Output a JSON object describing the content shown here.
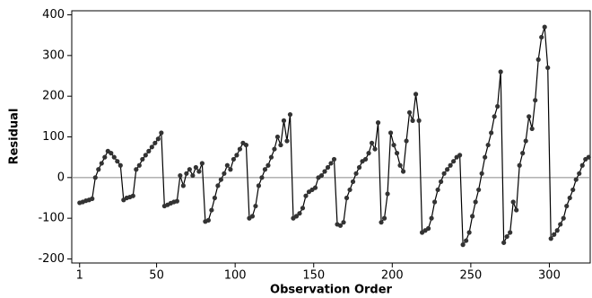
{
  "chart_data": {
    "type": "line",
    "xlabel": "Observation Order",
    "ylabel": "Residual",
    "xlim": [
      -4,
      326
    ],
    "ylim": [
      -210,
      410
    ],
    "xticks": [
      1,
      50,
      100,
      150,
      200,
      250,
      300
    ],
    "yticks": [
      -200,
      -100,
      0,
      100,
      200,
      300,
      400
    ],
    "reference_line": 0,
    "color": "#333333",
    "x": [
      1,
      3,
      5,
      7,
      9,
      11,
      13,
      15,
      17,
      19,
      21,
      23,
      25,
      27,
      29,
      31,
      33,
      35,
      37,
      39,
      41,
      43,
      45,
      47,
      49,
      51,
      53,
      55,
      57,
      59,
      61,
      63,
      65,
      67,
      69,
      71,
      73,
      75,
      77,
      79,
      81,
      83,
      85,
      87,
      89,
      91,
      93,
      95,
      97,
      99,
      101,
      103,
      105,
      107,
      109,
      111,
      113,
      115,
      117,
      119,
      121,
      123,
      125,
      127,
      129,
      131,
      133,
      135,
      137,
      139,
      141,
      143,
      145,
      147,
      149,
      151,
      153,
      155,
      157,
      159,
      161,
      163,
      165,
      167,
      169,
      171,
      173,
      175,
      177,
      179,
      181,
      183,
      185,
      187,
      189,
      191,
      193,
      195,
      197,
      199,
      201,
      203,
      205,
      207,
      209,
      211,
      213,
      215,
      217,
      219,
      221,
      223,
      225,
      227,
      229,
      231,
      233,
      235,
      237,
      239,
      241,
      243,
      245,
      247,
      249,
      251,
      253,
      255,
      257,
      259,
      261,
      263,
      265,
      267,
      269,
      271,
      273,
      275,
      277,
      279,
      281,
      283,
      285,
      287,
      289,
      291,
      293,
      295,
      297,
      299,
      301,
      303,
      305,
      307,
      309,
      311,
      313,
      315,
      317,
      319,
      321,
      323,
      325
    ],
    "values": [
      -62,
      -60,
      -57,
      -55,
      -52,
      0,
      20,
      35,
      50,
      65,
      60,
      50,
      40,
      30,
      -55,
      -50,
      -48,
      -45,
      20,
      30,
      45,
      55,
      65,
      75,
      85,
      95,
      110,
      -70,
      -67,
      -63,
      -60,
      -58,
      5,
      -20,
      10,
      20,
      5,
      25,
      15,
      35,
      -108,
      -105,
      -80,
      -50,
      -20,
      -5,
      10,
      30,
      20,
      45,
      55,
      70,
      85,
      80,
      -100,
      -95,
      -70,
      -20,
      0,
      20,
      30,
      50,
      70,
      100,
      80,
      140,
      90,
      155,
      -100,
      -95,
      -88,
      -75,
      -45,
      -35,
      -30,
      -25,
      0,
      5,
      15,
      25,
      35,
      45,
      -115,
      -118,
      -110,
      -50,
      -30,
      -10,
      10,
      25,
      40,
      45,
      60,
      85,
      70,
      135,
      -110,
      -100,
      -40,
      110,
      80,
      60,
      30,
      15,
      90,
      160,
      140,
      205,
      140,
      -135,
      -130,
      -125,
      -100,
      -60,
      -30,
      -10,
      10,
      20,
      30,
      40,
      50,
      55,
      -165,
      -155,
      -135,
      -95,
      -60,
      -30,
      10,
      50,
      80,
      110,
      150,
      175,
      260,
      -160,
      -145,
      -135,
      -60,
      -80,
      30,
      60,
      90,
      150,
      120,
      190,
      290,
      345,
      370,
      270,
      -150,
      -140,
      -130,
      -115,
      -100,
      -70,
      -50,
      -30,
      -5,
      10,
      30,
      45,
      50
    ]
  }
}
